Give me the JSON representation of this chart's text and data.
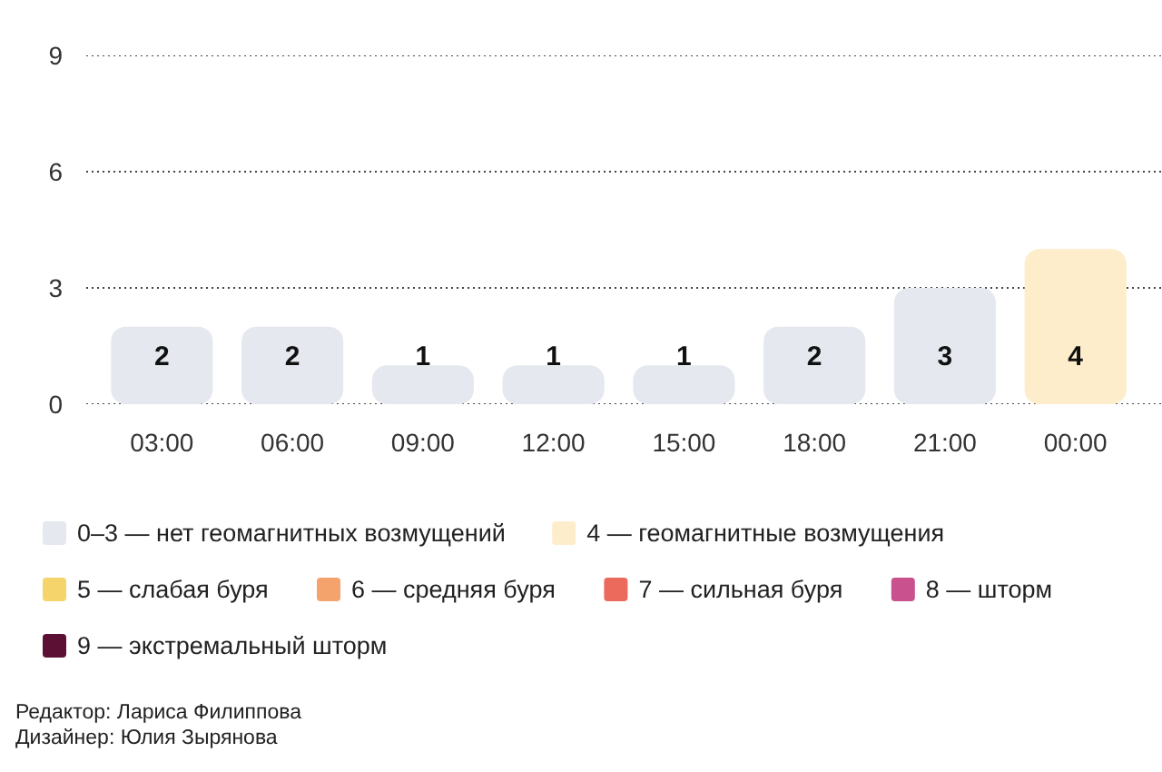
{
  "chart_data": {
    "type": "bar",
    "categories": [
      "03:00",
      "06:00",
      "09:00",
      "12:00",
      "15:00",
      "18:00",
      "21:00",
      "00:00"
    ],
    "series": [
      {
        "name": "0–3 — нет геомагнитных возмущений",
        "color": "#e6e8f0",
        "values": [
          2,
          2,
          1,
          1,
          1,
          2,
          3,
          null
        ]
      },
      {
        "name": "4 — геомагнитные возмущения",
        "color": "#fdedcb",
        "values": [
          null,
          null,
          null,
          null,
          null,
          null,
          null,
          4
        ]
      },
      {
        "name": "5 — слабая буря",
        "color": "#f6d46c",
        "values": [
          null,
          null,
          null,
          null,
          null,
          null,
          null,
          null
        ]
      },
      {
        "name": "6 — средняя буря",
        "color": "#f5a36d",
        "values": [
          null,
          null,
          null,
          null,
          null,
          null,
          null,
          null
        ]
      },
      {
        "name": "7 — сильная буря",
        "color": "#ec6a5b",
        "values": [
          null,
          null,
          null,
          null,
          null,
          null,
          null,
          null
        ]
      },
      {
        "name": "8 — шторм",
        "color": "#c8518e",
        "values": [
          null,
          null,
          null,
          null,
          null,
          null,
          null,
          null
        ]
      },
      {
        "name": "9 — экстремальный шторм",
        "color": "#5c1033",
        "values": [
          null,
          null,
          null,
          null,
          null,
          null,
          null,
          null
        ]
      }
    ],
    "stacked": true,
    "ylim": [
      0,
      9
    ],
    "yticks": [
      0,
      3,
      6,
      9
    ],
    "grid": "y",
    "data_labels": true,
    "legend": "bottom",
    "annotations": [
      "Редактор: Лариса Филиппова",
      "Дизайнер: Юлия Зырянова"
    ]
  }
}
